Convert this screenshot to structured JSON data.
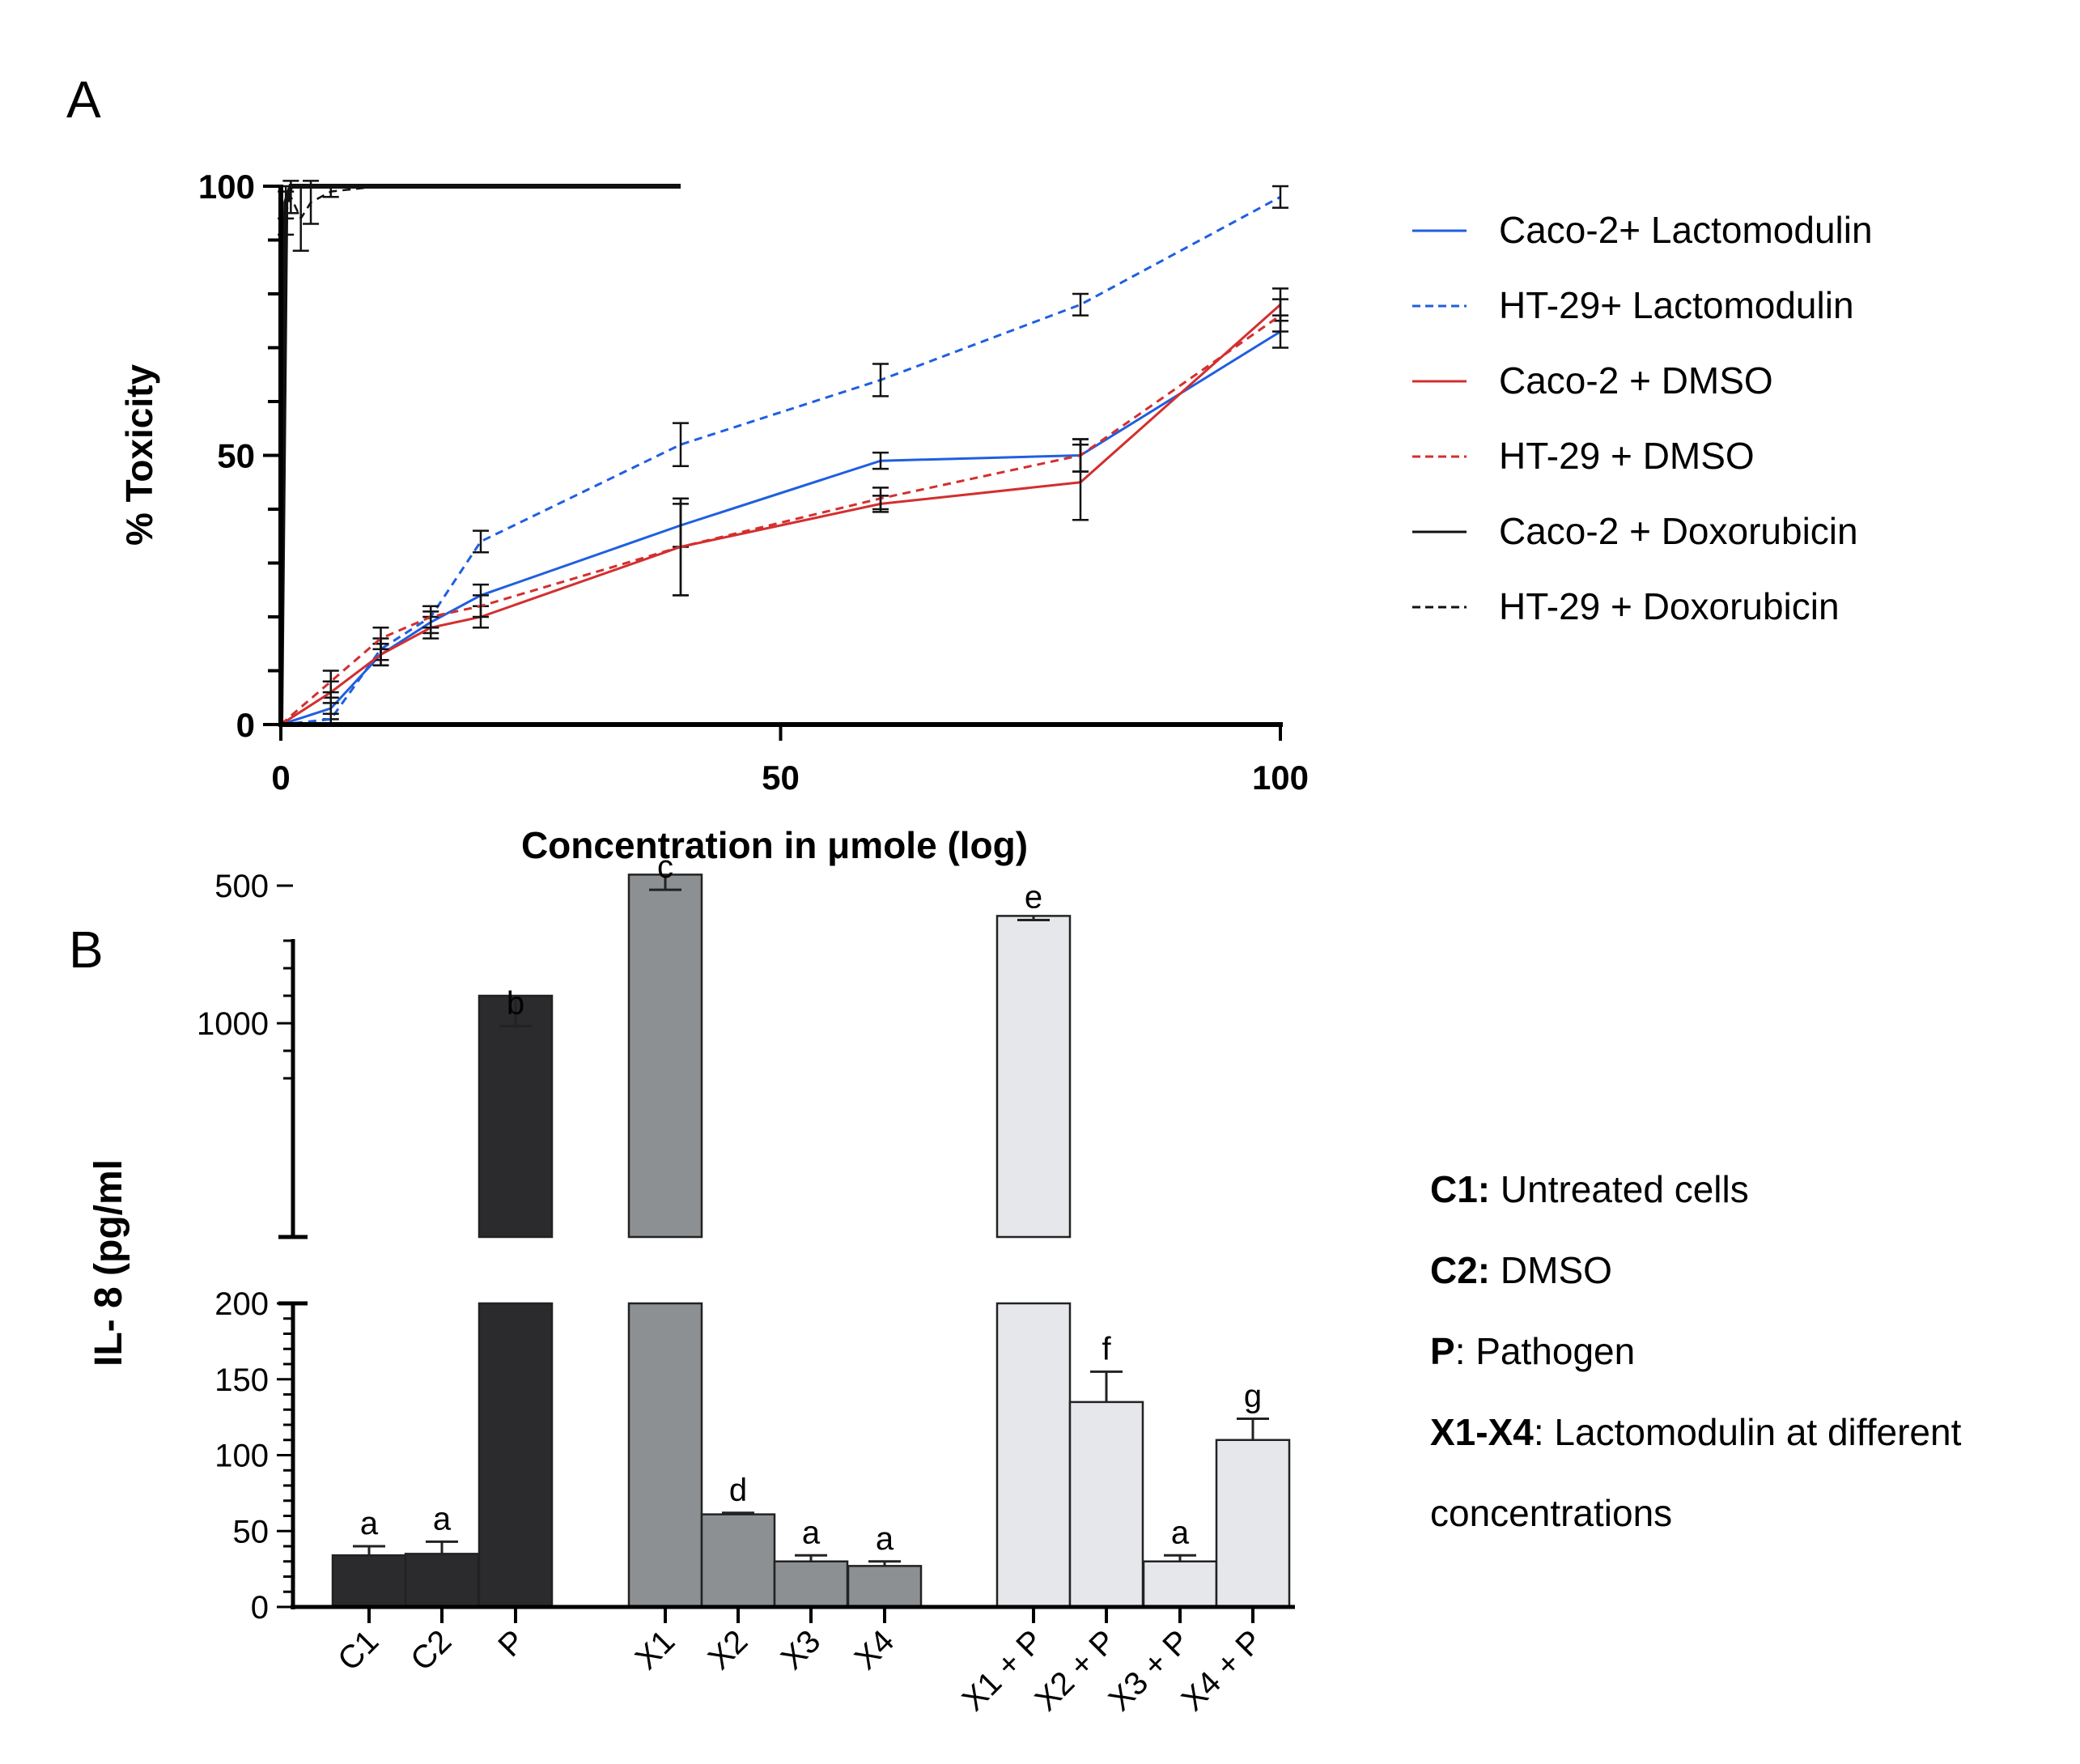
{
  "panelA": {
    "letter": "A",
    "ylabel": "% Toxicity",
    "xlabel": "Concentration in μmole (log)",
    "yticks": [
      "0",
      "50",
      "100"
    ],
    "xticks": [
      "0",
      "50",
      "100"
    ],
    "legend": [
      {
        "label": "Caco-2+ Lactomodulin",
        "color": "#1f5fe0",
        "dash": false
      },
      {
        "label": "HT-29+ Lactomodulin",
        "color": "#1f5fe0",
        "dash": true
      },
      {
        "label": "Caco-2 + DMSO",
        "color": "#d32f2f",
        "dash": false
      },
      {
        "label": "HT-29 + DMSO",
        "color": "#d32f2f",
        "dash": true
      },
      {
        "label": "Caco-2 + Doxorubicin",
        "color": "#111111",
        "dash": false
      },
      {
        "label": "HT-29 + Doxorubicin",
        "color": "#111111",
        "dash": true
      }
    ]
  },
  "panelB": {
    "letter": "B",
    "ylabel": "IL- 8 (pg/ml",
    "yticks_upper": [
      "500",
      "1000"
    ],
    "yticks_lower": [
      "0",
      "50",
      "100",
      "150",
      "200"
    ],
    "legend": [
      {
        "key": "C1:",
        "text": " Untreated cells"
      },
      {
        "key": "C2:",
        "text": " DMSO"
      },
      {
        "key": "P",
        "text": ": Pathogen"
      },
      {
        "key": "X1-X4",
        "text": ": Lactomodulin at different"
      },
      {
        "key": "",
        "text": "concentrations"
      }
    ]
  },
  "chart_data": [
    {
      "type": "line",
      "panel": "A",
      "xlabel": "Concentration in μmole (log)",
      "ylabel": "% Toxicity",
      "xlim": [
        0,
        100
      ],
      "ylim": [
        0,
        100
      ],
      "xticks": [
        0,
        50,
        100
      ],
      "yticks": [
        0,
        50,
        100
      ],
      "legend_position": "right",
      "series": [
        {
          "name": "Caco-2+ Lactomodulin",
          "color": "#1f5fe0",
          "dashed": false,
          "x": [
            0,
            5,
            10,
            15,
            20,
            40,
            60,
            80,
            100
          ],
          "y": [
            0,
            3,
            13,
            19,
            24,
            37,
            49,
            50,
            73
          ],
          "err": [
            0,
            2,
            2,
            2,
            2,
            4,
            1.5,
            3,
            3
          ]
        },
        {
          "name": "HT-29+ Lactomodulin",
          "color": "#1f5fe0",
          "dashed": true,
          "x": [
            0,
            5,
            10,
            15,
            20,
            40,
            60,
            80,
            100
          ],
          "y": [
            0,
            1,
            14,
            20,
            34,
            52,
            64,
            78,
            98
          ],
          "err": [
            0,
            1,
            2,
            2,
            2,
            4,
            3,
            2,
            2
          ]
        },
        {
          "name": "Caco-2 + DMSO",
          "color": "#d32f2f",
          "dashed": false,
          "x": [
            0,
            5,
            10,
            15,
            20,
            40,
            60,
            80,
            100
          ],
          "y": [
            0,
            6,
            13,
            18,
            20,
            33,
            41,
            45,
            78
          ],
          "err": [
            0,
            2,
            2,
            2,
            2,
            9,
            1.5,
            7,
            3
          ]
        },
        {
          "name": "HT-29 + DMSO",
          "color": "#d32f2f",
          "dashed": true,
          "x": [
            0,
            5,
            10,
            15,
            20,
            40,
            60,
            80,
            100
          ],
          "y": [
            0,
            8,
            16,
            20,
            22,
            33,
            42,
            50,
            76
          ],
          "err": [
            0,
            2,
            2,
            2,
            2,
            9,
            2,
            3,
            3
          ]
        },
        {
          "name": "Caco-2 + Doxorubicin",
          "color": "#111111",
          "dashed": false,
          "x": [
            0,
            0.5,
            1,
            2,
            3,
            5,
            10,
            20,
            40
          ],
          "y": [
            0,
            97,
            100,
            100,
            100,
            100,
            100,
            100,
            100
          ],
          "err": [
            0,
            3,
            0,
            0,
            0,
            0,
            0,
            0,
            0
          ]
        },
        {
          "name": "HT-29 + Doxorubicin",
          "color": "#111111",
          "dashed": true,
          "x": [
            0,
            0.5,
            1,
            2,
            3,
            5,
            10,
            20,
            40
          ],
          "y": [
            0,
            95,
            98,
            94,
            97,
            99,
            100,
            100,
            100
          ],
          "err": [
            0,
            4,
            3,
            6,
            4,
            1,
            0,
            0,
            0
          ]
        }
      ]
    },
    {
      "type": "bar",
      "panel": "B",
      "ylabel": "IL- 8 (pg/ml",
      "categories": [
        "C1",
        "C2",
        "P",
        "X1",
        "X2",
        "X3",
        "X4",
        "X1 + P",
        "X2 + P",
        "X3 + P",
        "X4 + P"
      ],
      "values": [
        34,
        35,
        900,
        460,
        61,
        30,
        27,
        610,
        135,
        30,
        110
      ],
      "errors": [
        6,
        8,
        110,
        55,
        1,
        4,
        3,
        15,
        20,
        4,
        14
      ],
      "letters": [
        "a",
        "a",
        "b",
        "c",
        "d",
        "a",
        "a",
        "e",
        "f",
        "a",
        "g"
      ],
      "colors": [
        "#2b2b2e",
        "#2b2b2e",
        "#2b2b2e",
        "#8d9092",
        "#8d9092",
        "#8d9092",
        "#8d9092",
        "#e6e7ea",
        "#e6e7ea",
        "#e6e7ea",
        "#e6e7ea"
      ],
      "y_axis_break": {
        "lower": [
          0,
          200
        ],
        "upper": [
          250,
          1300
        ]
      }
    }
  ]
}
